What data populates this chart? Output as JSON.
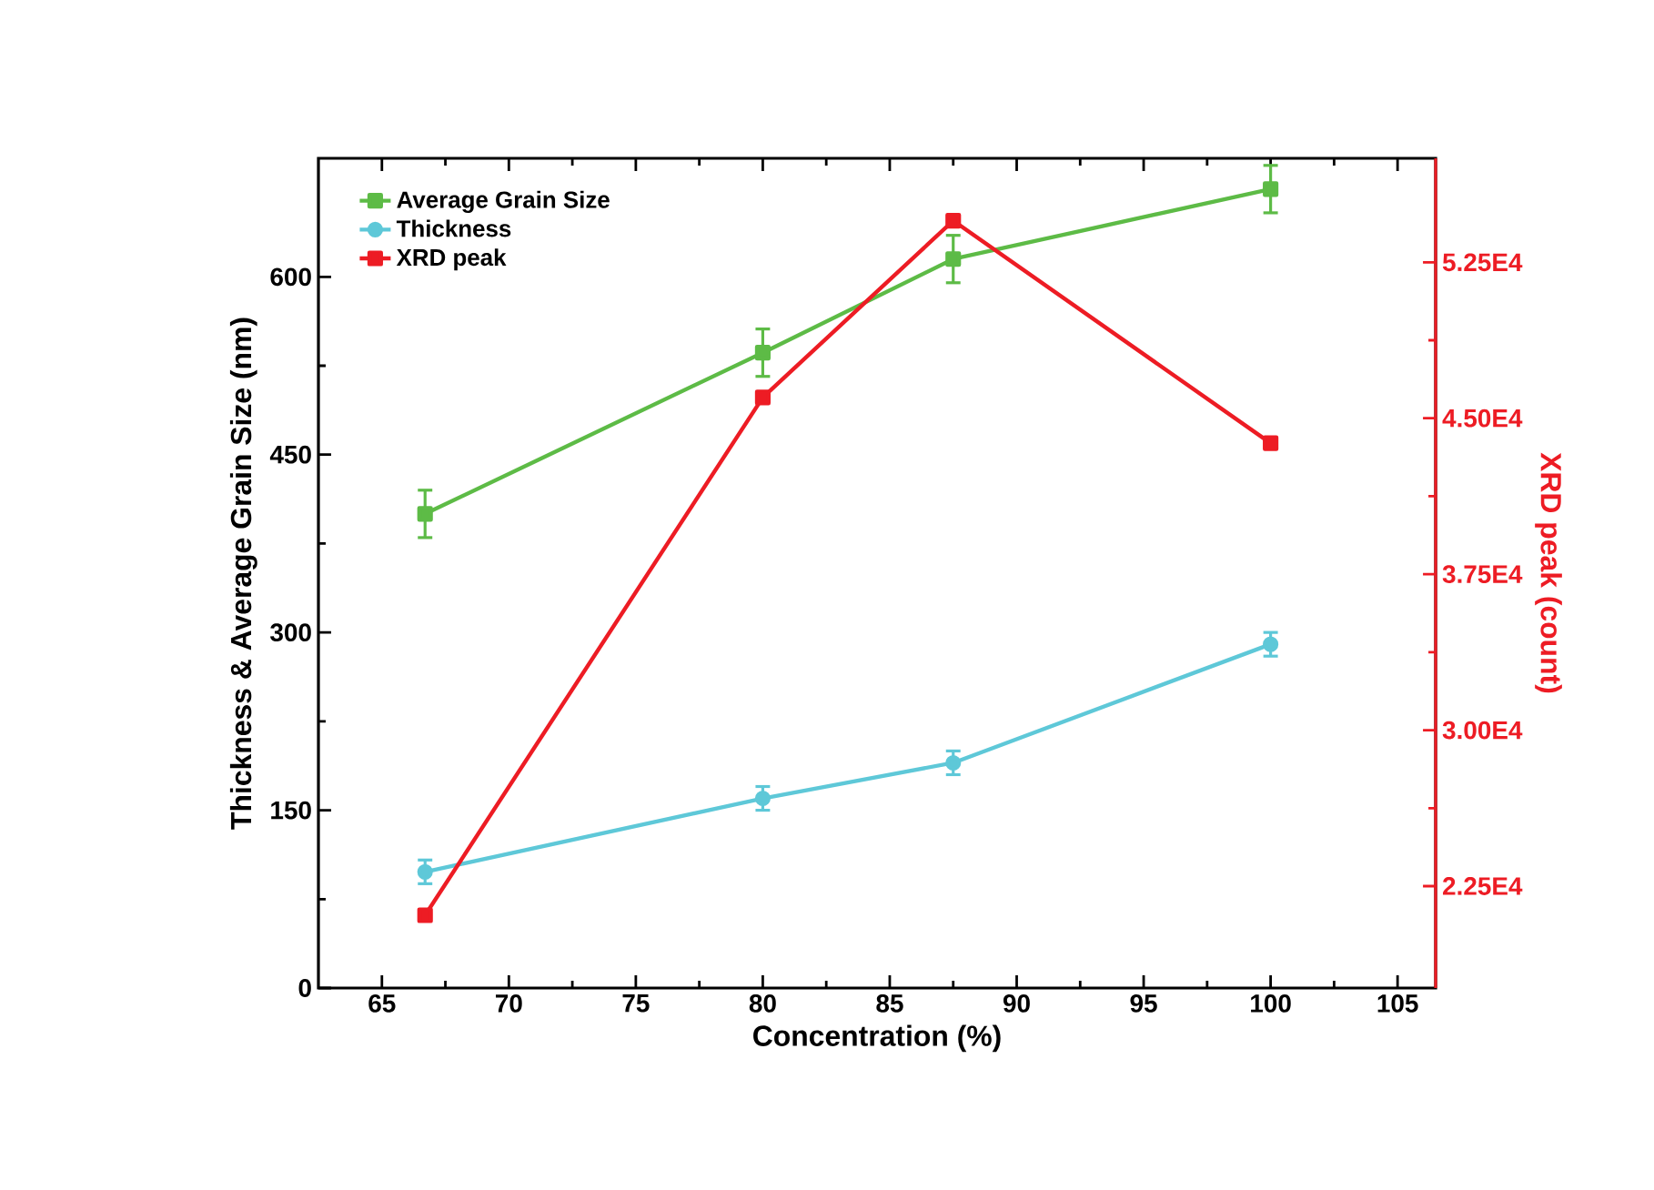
{
  "chart_data": {
    "type": "line",
    "xlabel": "Concentration (%)",
    "ylabel": "Thickness & Average Grain Size (nm)",
    "y2label": "XRD peak (count)",
    "x": [
      66.7,
      80,
      87.5,
      100
    ],
    "series": [
      {
        "name": "Average Grain Size",
        "color": "#5dbb46",
        "marker": "square",
        "values": [
          400,
          536,
          615,
          674
        ],
        "errors": [
          20,
          20,
          20,
          20
        ]
      },
      {
        "name": "Thickness",
        "color": "#5ec8d8",
        "marker": "circle",
        "values": [
          98,
          160,
          190,
          290
        ],
        "errors": [
          10,
          10,
          10,
          10
        ]
      },
      {
        "name": "XRD peak",
        "color": "#ed1c24",
        "marker": "square",
        "axis": "y2",
        "values": [
          21100,
          46000,
          54500,
          43800
        ]
      }
    ],
    "xlim": [
      62.5,
      106.5
    ],
    "xticks": [
      65,
      70,
      75,
      80,
      85,
      90,
      95,
      100,
      105
    ],
    "ylim": [
      0,
      700
    ],
    "yticks": [
      0,
      150,
      300,
      450,
      600
    ],
    "y2lim": [
      17600,
      57500
    ],
    "y2ticks": [
      {
        "value": 22500,
        "label": "2.25E4"
      },
      {
        "value": 30000,
        "label": "3.00E4"
      },
      {
        "value": 37500,
        "label": "3.75E4"
      },
      {
        "value": 45000,
        "label": "4.50E4"
      },
      {
        "value": 52500,
        "label": "5.25E4"
      }
    ],
    "legend": "top left"
  }
}
